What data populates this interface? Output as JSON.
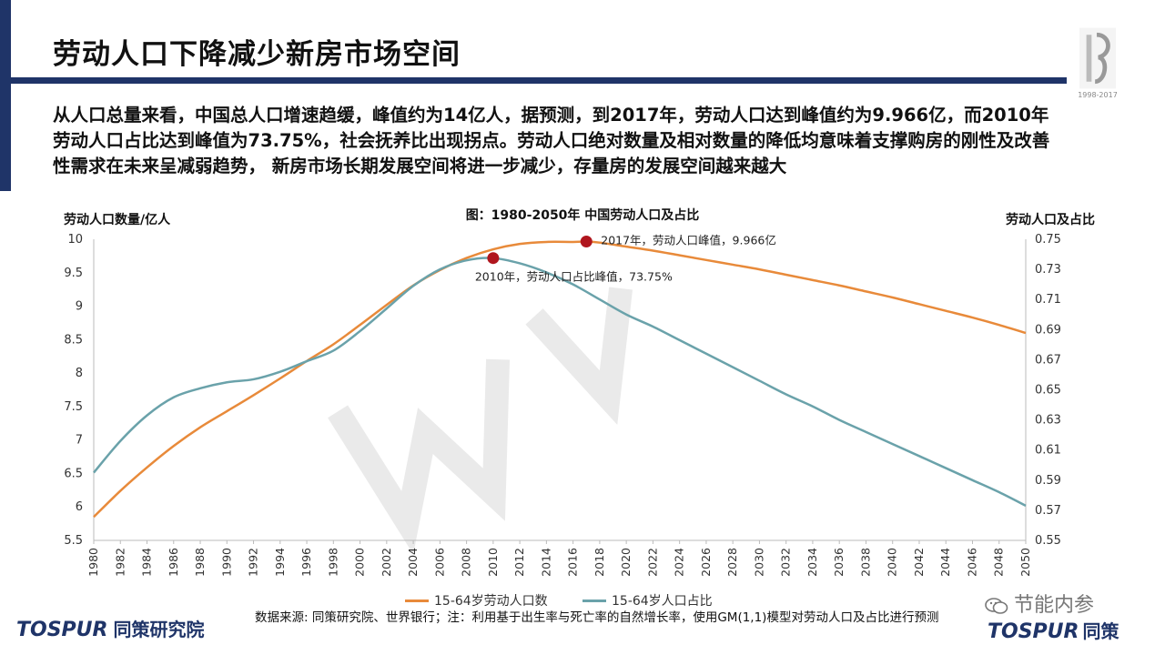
{
  "header": {
    "title": "劳动人口下降减少新房市场空间",
    "badge_years": "1998-2017"
  },
  "intro_text": "从人口总量来看，中国总人口增速趋缓，峰值约为14亿人，据预测，到2017年，劳动人口达到峰值约为9.966亿，而2010年劳动人口占比达到峰值为73.75%，社会抚养比出现拐点。劳动人口绝对数量及相对数量的降低均意味着支撑购房的刚性及改善性需求在未来呈减弱趋势， 新房市场长期发展空间将进一步减少，存量房的发展空间越来越大",
  "chart_data": {
    "type": "line",
    "title": "图：1980-2050年 中国劳动人口及占比",
    "ylabel": "劳动人口数量/亿人",
    "y2label": "劳动人口及占比",
    "x_ticks": [
      "1980",
      "1982",
      "1984",
      "1986",
      "1988",
      "1990",
      "1992",
      "1994",
      "1996",
      "1998",
      "2000",
      "2002",
      "2004",
      "2006",
      "2008",
      "2010",
      "2012",
      "2014",
      "2016",
      "2018",
      "2020",
      "2022",
      "2024",
      "2026",
      "2028",
      "2030",
      "2032",
      "2034",
      "2036",
      "2038",
      "2040",
      "2042",
      "2044",
      "2046",
      "2048",
      "2050"
    ],
    "ylim": [
      5.5,
      10
    ],
    "y_ticks": [
      "10",
      "9.5",
      "9",
      "8.5",
      "8",
      "7.5",
      "7",
      "6.5",
      "6",
      "5.5"
    ],
    "y2lim": [
      0.55,
      0.75
    ],
    "y2_ticks": [
      "0.75",
      "0.73",
      "0.71",
      "0.69",
      "0.67",
      "0.65",
      "0.63",
      "0.61",
      "0.59",
      "0.57",
      "0.55"
    ],
    "series": [
      {
        "name": "15-64岁劳动人口数",
        "axis": "left",
        "color": "#e88a3a",
        "x": [
          1980,
          1982,
          1984,
          1986,
          1988,
          1990,
          1992,
          1994,
          1996,
          1998,
          2000,
          2002,
          2004,
          2006,
          2008,
          2010,
          2012,
          2014,
          2016,
          2017,
          2018,
          2020,
          2022,
          2024,
          2026,
          2028,
          2030,
          2032,
          2034,
          2036,
          2038,
          2040,
          2042,
          2044,
          2046,
          2048,
          2050
        ],
        "values": [
          5.85,
          6.24,
          6.59,
          6.91,
          7.19,
          7.43,
          7.67,
          7.92,
          8.18,
          8.43,
          8.72,
          9.02,
          9.31,
          9.54,
          9.72,
          9.85,
          9.93,
          9.96,
          9.96,
          9.966,
          9.95,
          9.89,
          9.83,
          9.76,
          9.69,
          9.62,
          9.55,
          9.47,
          9.39,
          9.31,
          9.22,
          9.13,
          9.03,
          8.93,
          8.83,
          8.72,
          8.6
        ]
      },
      {
        "name": "15-64岁人口占比",
        "axis": "right",
        "color": "#6aa2aa",
        "x": [
          1980,
          1982,
          1984,
          1986,
          1988,
          1990,
          1992,
          1994,
          1996,
          1998,
          2000,
          2002,
          2004,
          2006,
          2008,
          2010,
          2012,
          2014,
          2016,
          2018,
          2020,
          2022,
          2024,
          2026,
          2028,
          2030,
          2032,
          2034,
          2036,
          2038,
          2040,
          2042,
          2044,
          2046,
          2048,
          2050
        ],
        "values": [
          0.595,
          0.616,
          0.633,
          0.645,
          0.651,
          0.655,
          0.657,
          0.662,
          0.669,
          0.676,
          0.689,
          0.704,
          0.719,
          0.73,
          0.736,
          0.7375,
          0.734,
          0.728,
          0.72,
          0.71,
          0.7,
          0.692,
          0.683,
          0.674,
          0.665,
          0.656,
          0.647,
          0.639,
          0.63,
          0.622,
          0.614,
          0.606,
          0.598,
          0.59,
          0.582,
          0.573
        ]
      }
    ],
    "annotations": [
      {
        "label": "2017年，劳动人口峰值，9.966亿",
        "x": 2017,
        "y": 9.966,
        "axis": "left"
      },
      {
        "label": "2010年，劳动人口占比峰值，73.75%",
        "x": 2010,
        "y": 0.7375,
        "axis": "right"
      }
    ],
    "marker_color": "#b0161e",
    "legend_position": "bottom"
  },
  "legend": [
    {
      "label": "15-64岁劳动人口数",
      "color": "#e88a3a"
    },
    {
      "label": "15-64岁人口占比",
      "color": "#6aa2aa"
    }
  ],
  "footer": {
    "logo_left_en": "TOSPUR",
    "logo_left_cn": "同策研究院",
    "source_text": "数据来源: 同策研究院、世界银行；注：利用基于出生率与死亡率的自然增长率，使用GM(1,1)模型对劳动人口及占比进行预测",
    "wechat_label": "节能内参",
    "logo_right_en": "TOSPUR",
    "logo_right_cn": "同策"
  }
}
